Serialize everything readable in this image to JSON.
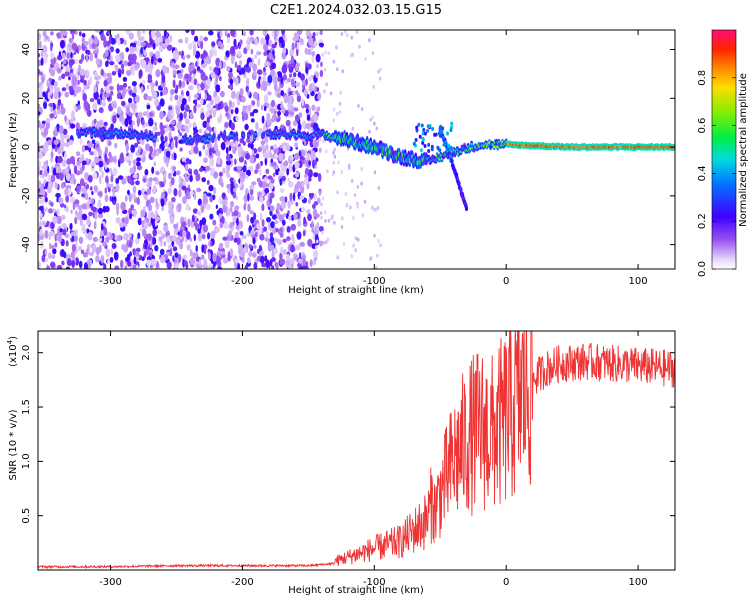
{
  "title": "C2E1.2024.032.03.15.G15",
  "chart_data": [
    {
      "type": "heatmap",
      "xlabel": "Height of straight line (km)",
      "ylabel": "Frequency (Hz)",
      "xlim": [
        -355,
        128
      ],
      "ylim": [
        -50,
        48
      ],
      "xticks": [
        -300,
        -200,
        -100,
        0,
        100
      ],
      "yticks": [
        -40,
        -20,
        0,
        20,
        40
      ],
      "colorbar": {
        "label": "Normalized spectral amplitude",
        "range": [
          0,
          1
        ],
        "ticks": [
          "0.0",
          "0.2",
          "0.4",
          "0.6",
          "0.8"
        ]
      },
      "description_points": {
        "main_trace_frequency_hz": [
          {
            "x": -320,
            "y": 6
          },
          {
            "x": -280,
            "y": 5
          },
          {
            "x": -240,
            "y": 3
          },
          {
            "x": -200,
            "y": 5
          },
          {
            "x": -170,
            "y": 5
          },
          {
            "x": -140,
            "y": 5
          },
          {
            "x": -120,
            "y": 3
          },
          {
            "x": -100,
            "y": 0
          },
          {
            "x": -80,
            "y": -4
          },
          {
            "x": -60,
            "y": -6
          },
          {
            "x": -40,
            "y": -2
          },
          {
            "x": -20,
            "y": 1
          },
          {
            "x": 0,
            "y": 1
          },
          {
            "x": 50,
            "y": 0
          },
          {
            "x": 128,
            "y": 0
          }
        ],
        "diagonal_branch": [
          {
            "x": -50,
            "y": 8
          },
          {
            "x": -40,
            "y": -8
          },
          {
            "x": -30,
            "y": -25
          }
        ]
      }
    },
    {
      "type": "line",
      "xlabel": "Height of straight line (km)",
      "ylabel": "SNR (10 * v/v)",
      "y_multiplier": "(x10",
      "y_multiplier_exp": "4",
      "y_multiplier_close": ")",
      "xlim": [
        -355,
        128
      ],
      "ylim": [
        0,
        2.2
      ],
      "xticks": [
        -300,
        -200,
        -100,
        0,
        100
      ],
      "yticks": [
        0.5,
        1.0,
        1.5,
        2.0
      ],
      "ytick_labels": [
        "0.5",
        "1.0",
        "1.5",
        "2.0"
      ],
      "series": [
        {
          "color": "#ee3333",
          "x": [
            -355,
            -300,
            -250,
            -200,
            -150,
            -130,
            -110,
            -100,
            -80,
            -60,
            -50,
            -40,
            -30,
            -20,
            -10,
            0,
            10,
            20,
            30,
            40,
            60,
            80,
            100,
            128
          ],
          "y": [
            0.03,
            0.03,
            0.04,
            0.04,
            0.04,
            0.06,
            0.12,
            0.15,
            0.2,
            0.35,
            0.7,
            1.0,
            1.2,
            1.3,
            1.25,
            1.4,
            1.6,
            1.75,
            1.85,
            1.9,
            1.92,
            1.9,
            1.88,
            1.85
          ]
        }
      ]
    }
  ]
}
